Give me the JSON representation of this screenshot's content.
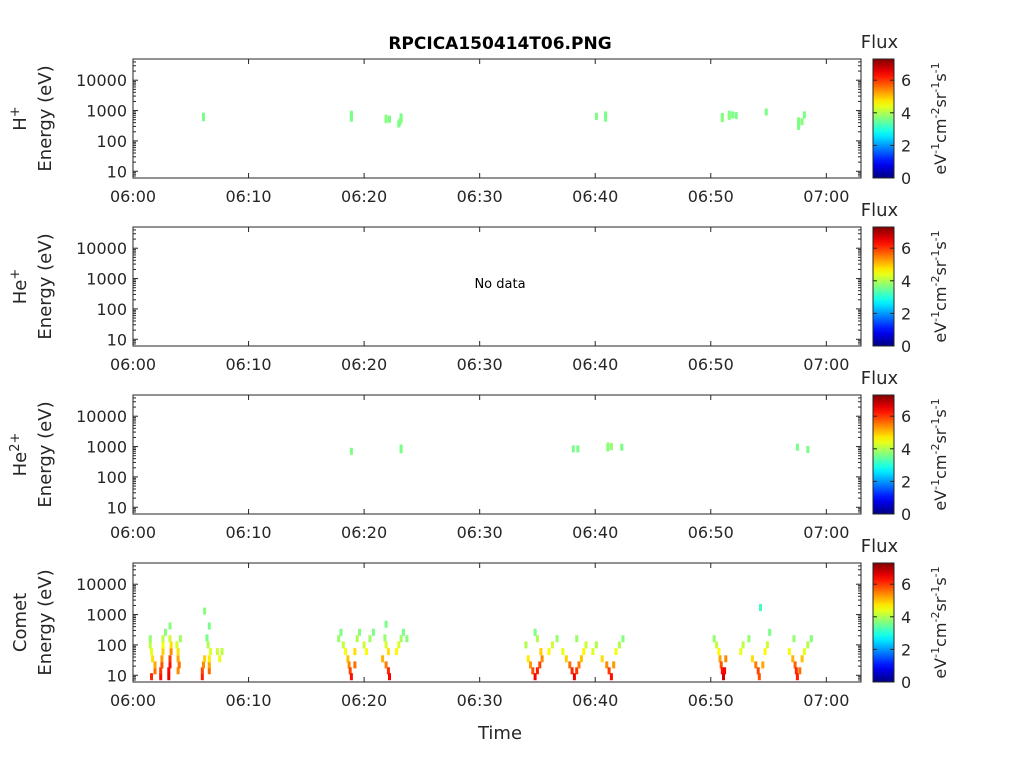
{
  "chart_data": {
    "type": "heatmap",
    "title": "RPCICA150414T06.PNG",
    "xlabel": "Time",
    "x_ticks": [
      "06:00",
      "06:10",
      "06:20",
      "06:30",
      "06:40",
      "06:50",
      "07:00"
    ],
    "x_range_minutes": [
      0,
      63
    ],
    "y_scale": "log",
    "ylim": [
      6,
      50000
    ],
    "y_ticks": [
      "10",
      "100",
      "1000",
      "10000"
    ],
    "ylabel": "Energy (eV)",
    "colorbar": {
      "label": "Flux",
      "unit_parts": [
        "eV",
        "-1",
        "cm",
        "-2",
        "sr",
        "-1",
        "s",
        "-1"
      ],
      "range": [
        0,
        7.3
      ],
      "ticks": [
        "0",
        "2",
        "4",
        "6"
      ],
      "colormap": "jet"
    },
    "panels": [
      {
        "species": "H",
        "species_sup": "+",
        "no_data": "",
        "points": [
          {
            "t": 6.1,
            "e": 650,
            "v": 3.6
          },
          {
            "t": 6.1,
            "e": 580,
            "v": 3.6
          },
          {
            "t": 18.9,
            "e": 760,
            "v": 3.6
          },
          {
            "t": 18.9,
            "e": 650,
            "v": 3.6
          },
          {
            "t": 18.9,
            "e": 560,
            "v": 3.6
          },
          {
            "t": 21.9,
            "e": 560,
            "v": 3.7
          },
          {
            "t": 21.9,
            "e": 500,
            "v": 3.7
          },
          {
            "t": 22.2,
            "e": 520,
            "v": 3.6
          },
          {
            "t": 23.2,
            "e": 620,
            "v": 3.6
          },
          {
            "t": 23.2,
            "e": 520,
            "v": 3.6
          },
          {
            "t": 23.1,
            "e": 420,
            "v": 3.7
          },
          {
            "t": 23.0,
            "e": 360,
            "v": 3.6
          },
          {
            "t": 40.1,
            "e": 640,
            "v": 3.6
          },
          {
            "t": 40.9,
            "e": 720,
            "v": 3.6
          },
          {
            "t": 40.9,
            "e": 560,
            "v": 3.6
          },
          {
            "t": 51.0,
            "e": 640,
            "v": 3.6
          },
          {
            "t": 51.0,
            "e": 540,
            "v": 3.7
          },
          {
            "t": 51.6,
            "e": 760,
            "v": 3.6
          },
          {
            "t": 51.6,
            "e": 640,
            "v": 3.7
          },
          {
            "t": 51.9,
            "e": 720,
            "v": 3.6
          },
          {
            "t": 52.2,
            "e": 680,
            "v": 3.6
          },
          {
            "t": 54.8,
            "e": 900,
            "v": 3.6
          },
          {
            "t": 57.6,
            "e": 460,
            "v": 3.7
          },
          {
            "t": 57.6,
            "e": 370,
            "v": 3.6
          },
          {
            "t": 57.6,
            "e": 300,
            "v": 3.6
          },
          {
            "t": 57.9,
            "e": 430,
            "v": 3.7
          },
          {
            "t": 58.1,
            "e": 720,
            "v": 3.6
          }
        ]
      },
      {
        "species": "He",
        "species_sup": "+",
        "no_data": "No data",
        "points": []
      },
      {
        "species": "He",
        "species_sup": "2+",
        "no_data": "",
        "points": [
          {
            "t": 18.9,
            "e": 700,
            "v": 3.6
          },
          {
            "t": 23.2,
            "e": 900,
            "v": 3.6
          },
          {
            "t": 23.2,
            "e": 780,
            "v": 3.6
          },
          {
            "t": 38.1,
            "e": 840,
            "v": 3.6
          },
          {
            "t": 38.5,
            "e": 840,
            "v": 3.6
          },
          {
            "t": 41.1,
            "e": 1050,
            "v": 3.8
          },
          {
            "t": 41.4,
            "e": 1000,
            "v": 3.8
          },
          {
            "t": 41.1,
            "e": 900,
            "v": 3.7
          },
          {
            "t": 42.3,
            "e": 950,
            "v": 3.6
          },
          {
            "t": 57.5,
            "e": 950,
            "v": 3.6
          },
          {
            "t": 58.4,
            "e": 800,
            "v": 3.6
          }
        ]
      },
      {
        "species": "Comet",
        "species_sup": "",
        "no_data": "",
        "points": [
          {
            "t": 1.6,
            "e": 9,
            "v": 6.1
          },
          {
            "t": 1.9,
            "e": 14,
            "v": 5.6
          },
          {
            "t": 1.9,
            "e": 22,
            "v": 5.2
          },
          {
            "t": 1.7,
            "e": 35,
            "v": 4.8
          },
          {
            "t": 1.6,
            "e": 60,
            "v": 4.4
          },
          {
            "t": 1.5,
            "e": 100,
            "v": 4.1
          },
          {
            "t": 1.5,
            "e": 160,
            "v": 3.8
          },
          {
            "t": 2.4,
            "e": 9,
            "v": 6.3
          },
          {
            "t": 2.4,
            "e": 14,
            "v": 6.0
          },
          {
            "t": 2.5,
            "e": 22,
            "v": 5.8
          },
          {
            "t": 2.5,
            "e": 35,
            "v": 5.3
          },
          {
            "t": 2.6,
            "e": 60,
            "v": 4.9
          },
          {
            "t": 2.6,
            "e": 100,
            "v": 4.5
          },
          {
            "t": 2.6,
            "e": 160,
            "v": 4.1
          },
          {
            "t": 2.8,
            "e": 260,
            "v": 3.7
          },
          {
            "t": 3.1,
            "e": 9,
            "v": 6.5
          },
          {
            "t": 3.1,
            "e": 14,
            "v": 6.4
          },
          {
            "t": 3.2,
            "e": 22,
            "v": 6.3
          },
          {
            "t": 3.2,
            "e": 35,
            "v": 6.0
          },
          {
            "t": 3.3,
            "e": 60,
            "v": 5.4
          },
          {
            "t": 3.3,
            "e": 100,
            "v": 4.8
          },
          {
            "t": 3.2,
            "e": 160,
            "v": 4.2
          },
          {
            "t": 3.2,
            "e": 420,
            "v": 3.7
          },
          {
            "t": 3.9,
            "e": 14,
            "v": 5.4
          },
          {
            "t": 4.0,
            "e": 22,
            "v": 5.6
          },
          {
            "t": 3.9,
            "e": 35,
            "v": 5.2
          },
          {
            "t": 3.9,
            "e": 60,
            "v": 4.8
          },
          {
            "t": 3.8,
            "e": 100,
            "v": 4.3
          },
          {
            "t": 4.1,
            "e": 160,
            "v": 3.9
          },
          {
            "t": 6.0,
            "e": 9,
            "v": 6.2
          },
          {
            "t": 6.0,
            "e": 14,
            "v": 5.9
          },
          {
            "t": 6.1,
            "e": 22,
            "v": 5.4
          },
          {
            "t": 6.2,
            "e": 35,
            "v": 4.9
          },
          {
            "t": 6.6,
            "e": 14,
            "v": 5.6
          },
          {
            "t": 6.6,
            "e": 22,
            "v": 5.2
          },
          {
            "t": 6.6,
            "e": 35,
            "v": 4.7
          },
          {
            "t": 6.7,
            "e": 60,
            "v": 4.3
          },
          {
            "t": 6.5,
            "e": 100,
            "v": 4.0
          },
          {
            "t": 6.4,
            "e": 170,
            "v": 3.6
          },
          {
            "t": 6.2,
            "e": 1300,
            "v": 3.7
          },
          {
            "t": 7.3,
            "e": 60,
            "v": 4.2
          },
          {
            "t": 7.5,
            "e": 35,
            "v": 4.4
          },
          {
            "t": 7.7,
            "e": 60,
            "v": 4.1
          },
          {
            "t": 6.6,
            "e": 420,
            "v": 3.6
          },
          {
            "t": 17.8,
            "e": 160,
            "v": 3.8
          },
          {
            "t": 18.0,
            "e": 260,
            "v": 3.6
          },
          {
            "t": 18.2,
            "e": 100,
            "v": 4.1
          },
          {
            "t": 18.4,
            "e": 60,
            "v": 4.5
          },
          {
            "t": 18.6,
            "e": 35,
            "v": 5.0
          },
          {
            "t": 18.7,
            "e": 22,
            "v": 5.4
          },
          {
            "t": 18.8,
            "e": 14,
            "v": 5.9
          },
          {
            "t": 18.9,
            "e": 9,
            "v": 6.3
          },
          {
            "t": 19.2,
            "e": 22,
            "v": 5.6
          },
          {
            "t": 19.2,
            "e": 60,
            "v": 4.8
          },
          {
            "t": 19.4,
            "e": 160,
            "v": 4.0
          },
          {
            "t": 19.6,
            "e": 260,
            "v": 3.7
          },
          {
            "t": 20.0,
            "e": 100,
            "v": 4.2
          },
          {
            "t": 20.2,
            "e": 60,
            "v": 4.5
          },
          {
            "t": 20.5,
            "e": 160,
            "v": 3.9
          },
          {
            "t": 20.8,
            "e": 260,
            "v": 3.6
          },
          {
            "t": 21.6,
            "e": 35,
            "v": 5.1
          },
          {
            "t": 21.9,
            "e": 22,
            "v": 5.5
          },
          {
            "t": 22.1,
            "e": 14,
            "v": 6.1
          },
          {
            "t": 22.2,
            "e": 9,
            "v": 6.4
          },
          {
            "t": 22.1,
            "e": 60,
            "v": 4.8
          },
          {
            "t": 21.9,
            "e": 100,
            "v": 4.3
          },
          {
            "t": 21.8,
            "e": 170,
            "v": 3.8
          },
          {
            "t": 21.9,
            "e": 480,
            "v": 3.6
          },
          {
            "t": 22.8,
            "e": 60,
            "v": 4.6
          },
          {
            "t": 23.0,
            "e": 100,
            "v": 4.3
          },
          {
            "t": 23.2,
            "e": 160,
            "v": 3.9
          },
          {
            "t": 23.4,
            "e": 260,
            "v": 3.6
          },
          {
            "t": 23.7,
            "e": 160,
            "v": 3.7
          },
          {
            "t": 34.0,
            "e": 100,
            "v": 4.0
          },
          {
            "t": 34.2,
            "e": 35,
            "v": 4.7
          },
          {
            "t": 34.4,
            "e": 22,
            "v": 5.3
          },
          {
            "t": 34.6,
            "e": 14,
            "v": 5.8
          },
          {
            "t": 34.8,
            "e": 9,
            "v": 6.4
          },
          {
            "t": 35.0,
            "e": 14,
            "v": 6.2
          },
          {
            "t": 35.2,
            "e": 22,
            "v": 5.9
          },
          {
            "t": 35.4,
            "e": 35,
            "v": 5.4
          },
          {
            "t": 35.3,
            "e": 60,
            "v": 4.9
          },
          {
            "t": 35.0,
            "e": 160,
            "v": 4.0
          },
          {
            "t": 34.8,
            "e": 260,
            "v": 3.6
          },
          {
            "t": 36.0,
            "e": 60,
            "v": 4.6
          },
          {
            "t": 36.3,
            "e": 100,
            "v": 4.2
          },
          {
            "t": 36.7,
            "e": 160,
            "v": 3.8
          },
          {
            "t": 37.2,
            "e": 60,
            "v": 4.4
          },
          {
            "t": 37.5,
            "e": 35,
            "v": 4.9
          },
          {
            "t": 37.8,
            "e": 22,
            "v": 5.6
          },
          {
            "t": 38.0,
            "e": 14,
            "v": 6.1
          },
          {
            "t": 38.2,
            "e": 9,
            "v": 6.5
          },
          {
            "t": 38.4,
            "e": 14,
            "v": 6.0
          },
          {
            "t": 38.6,
            "e": 22,
            "v": 5.5
          },
          {
            "t": 38.8,
            "e": 35,
            "v": 5.0
          },
          {
            "t": 39.0,
            "e": 60,
            "v": 4.6
          },
          {
            "t": 39.2,
            "e": 100,
            "v": 4.2
          },
          {
            "t": 38.4,
            "e": 160,
            "v": 3.8
          },
          {
            "t": 39.8,
            "e": 60,
            "v": 4.3
          },
          {
            "t": 40.1,
            "e": 100,
            "v": 4.0
          },
          {
            "t": 40.6,
            "e": 35,
            "v": 4.8
          },
          {
            "t": 41.0,
            "e": 22,
            "v": 5.4
          },
          {
            "t": 41.2,
            "e": 14,
            "v": 6.0
          },
          {
            "t": 41.4,
            "e": 9,
            "v": 6.3
          },
          {
            "t": 41.6,
            "e": 22,
            "v": 5.3
          },
          {
            "t": 41.8,
            "e": 60,
            "v": 4.5
          },
          {
            "t": 42.1,
            "e": 100,
            "v": 4.0
          },
          {
            "t": 42.4,
            "e": 160,
            "v": 3.7
          },
          {
            "t": 50.3,
            "e": 160,
            "v": 3.8
          },
          {
            "t": 50.5,
            "e": 100,
            "v": 4.1
          },
          {
            "t": 50.7,
            "e": 60,
            "v": 4.6
          },
          {
            "t": 50.8,
            "e": 35,
            "v": 5.2
          },
          {
            "t": 50.9,
            "e": 22,
            "v": 5.8
          },
          {
            "t": 51.0,
            "e": 14,
            "v": 6.3
          },
          {
            "t": 51.1,
            "e": 9,
            "v": 6.7
          },
          {
            "t": 51.2,
            "e": 14,
            "v": 6.4
          },
          {
            "t": 51.3,
            "e": 35,
            "v": 5.4
          },
          {
            "t": 52.6,
            "e": 60,
            "v": 4.4
          },
          {
            "t": 52.8,
            "e": 100,
            "v": 4.1
          },
          {
            "t": 53.3,
            "e": 160,
            "v": 3.8
          },
          {
            "t": 53.6,
            "e": 35,
            "v": 4.8
          },
          {
            "t": 53.9,
            "e": 22,
            "v": 5.5
          },
          {
            "t": 54.1,
            "e": 14,
            "v": 5.9
          },
          {
            "t": 54.2,
            "e": 9,
            "v": 5.8
          },
          {
            "t": 54.5,
            "e": 22,
            "v": 5.2
          },
          {
            "t": 54.7,
            "e": 60,
            "v": 4.6
          },
          {
            "t": 54.9,
            "e": 100,
            "v": 4.2
          },
          {
            "t": 55.1,
            "e": 260,
            "v": 3.6
          },
          {
            "t": 54.3,
            "e": 1700,
            "v": 3.2
          },
          {
            "t": 56.8,
            "e": 60,
            "v": 4.5
          },
          {
            "t": 57.1,
            "e": 35,
            "v": 5.1
          },
          {
            "t": 57.3,
            "e": 22,
            "v": 5.7
          },
          {
            "t": 57.4,
            "e": 14,
            "v": 6.1
          },
          {
            "t": 57.5,
            "e": 9,
            "v": 6.2
          },
          {
            "t": 57.7,
            "e": 14,
            "v": 5.6
          },
          {
            "t": 57.9,
            "e": 35,
            "v": 5.0
          },
          {
            "t": 58.1,
            "e": 60,
            "v": 4.4
          },
          {
            "t": 58.4,
            "e": 100,
            "v": 4.0
          },
          {
            "t": 58.7,
            "e": 160,
            "v": 3.7
          },
          {
            "t": 57.2,
            "e": 160,
            "v": 3.8
          }
        ]
      }
    ]
  }
}
